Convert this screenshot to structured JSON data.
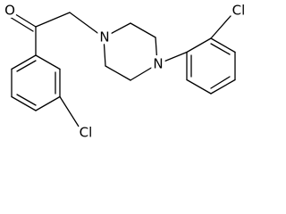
{
  "molecule": {
    "atom_labels": [
      "O",
      "N",
      "N",
      "Cl",
      "Cl"
    ]
  }
}
